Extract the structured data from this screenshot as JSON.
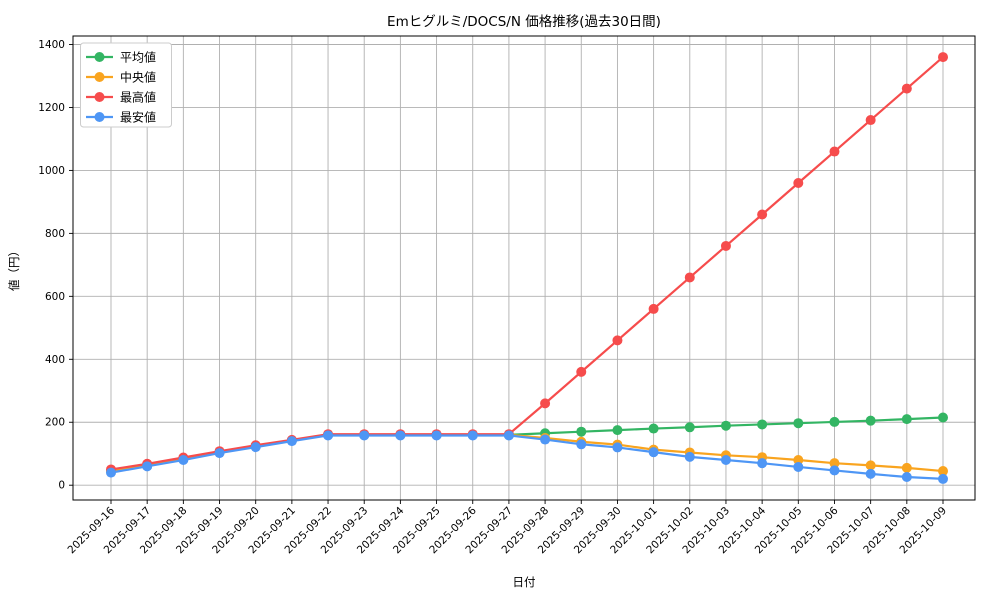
{
  "chart_data": {
    "type": "line",
    "title": "Emヒグルミ/DOCS/N 価格推移(過去30日間)",
    "xlabel": "日付",
    "ylabel": "値（円）",
    "x": [
      "2025-09-16",
      "2025-09-17",
      "2025-09-18",
      "2025-09-19",
      "2025-09-20",
      "2025-09-21",
      "2025-09-22",
      "2025-09-23",
      "2025-09-24",
      "2025-09-25",
      "2025-09-26",
      "2025-09-27",
      "2025-09-28",
      "2025-09-29",
      "2025-09-30",
      "2025-10-01",
      "2025-10-02",
      "2025-10-03",
      "2025-10-04",
      "2025-10-05",
      "2025-10-06",
      "2025-10-07",
      "2025-10-08",
      "2025-10-09"
    ],
    "series": [
      {
        "key": "avg",
        "name": "平均値",
        "color": "#33b563",
        "values": [
          45,
          64,
          84,
          105,
          124,
          142,
          160,
          160,
          160,
          160,
          160,
          160,
          165,
          170,
          175,
          180,
          184,
          189,
          193,
          197,
          201,
          205,
          210,
          215
        ]
      },
      {
        "key": "median",
        "name": "中央値",
        "color": "#f9a41f",
        "values": [
          45,
          64,
          84,
          105,
          124,
          142,
          160,
          160,
          160,
          160,
          160,
          160,
          150,
          138,
          129,
          113,
          104,
          95,
          89,
          80,
          70,
          63,
          55,
          45
        ]
      },
      {
        "key": "max",
        "name": "最高値",
        "color": "#f64c4c",
        "values": [
          50,
          68,
          88,
          108,
          127,
          144,
          162,
          162,
          162,
          162,
          162,
          162,
          260,
          360,
          460,
          560,
          660,
          760,
          860,
          960,
          1060,
          1160,
          1260,
          1360
        ]
      },
      {
        "key": "min",
        "name": "最安値",
        "color": "#4e96f5",
        "values": [
          40,
          60,
          80,
          102,
          121,
          140,
          158,
          158,
          158,
          158,
          158,
          158,
          145,
          130,
          120,
          105,
          90,
          80,
          70,
          58,
          47,
          36,
          26,
          20
        ]
      }
    ],
    "yticks": [
      0,
      200,
      400,
      600,
      800,
      1000,
      1200,
      1400
    ],
    "ylim": [
      -47,
      1427
    ],
    "grid": true,
    "legend_position": "upper-left",
    "legend_order": [
      "平均値",
      "中央値",
      "最高値",
      "最安値"
    ]
  },
  "styles": {
    "background": "#ffffff",
    "grid_color": "#b0b0b0",
    "spine_color": "#000000",
    "text_color": "#000000"
  }
}
